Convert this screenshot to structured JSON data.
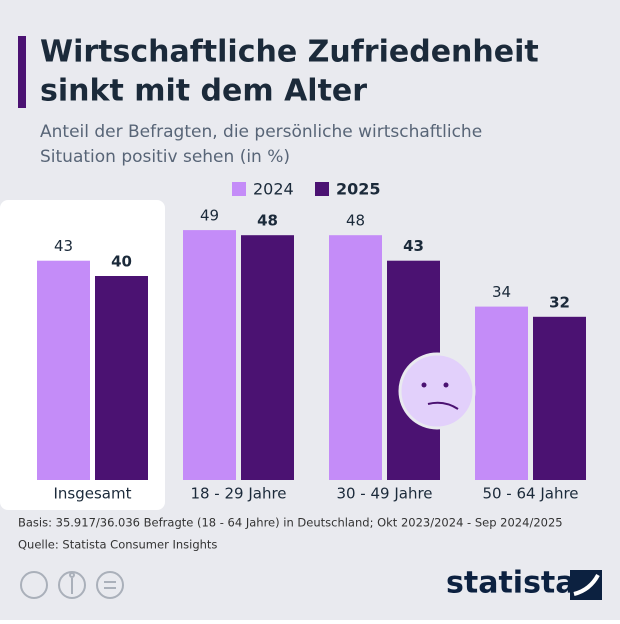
{
  "chart_data": {
    "type": "bar",
    "title": [
      "Wirtschaftliche Zufriedenheit",
      "sinkt mit dem Alter"
    ],
    "subtitle": [
      "Anteil der Befragten, die persönliche wirtschaftliche",
      "Situation positiv sehen (in %)"
    ],
    "categories": [
      "Insgesamt",
      "18 - 29 Jahre",
      "30 - 49 Jahre",
      "50 - 64 Jahre"
    ],
    "series": [
      {
        "name": "2024",
        "color": "#c48cf8",
        "values": [
          43,
          49,
          48,
          34
        ]
      },
      {
        "name": "2025",
        "color": "#4b1272",
        "values": [
          40,
          48,
          43,
          32
        ]
      }
    ],
    "notes": [
      "Basis: 35.917/36.036 Befragte (18 - 64 Jahre) in Deutschland; Okt 2023/2024 - Sep 2024/2025",
      "Quelle: Statista Consumer Insights"
    ],
    "brand": "statista"
  }
}
